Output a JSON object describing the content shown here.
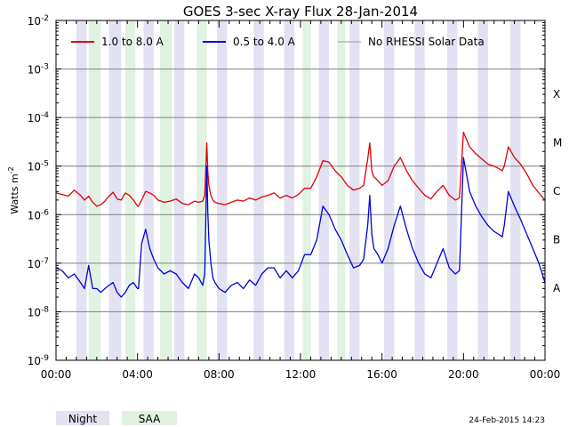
{
  "chart_data": {
    "type": "line",
    "title": "GOES 3-sec X-ray Flux   28-Jan-2014",
    "ylabel": "Watts m",
    "ylabel_sup": "-2",
    "y_scale": "log",
    "ylim": [
      1e-09,
      0.01
    ],
    "x_unit": "hours (UT)",
    "xlim": [
      0,
      24
    ],
    "x_ticks": [
      0,
      4,
      8,
      12,
      16,
      20,
      24
    ],
    "x_tick_labels": [
      "00:00",
      "04:00",
      "08:00",
      "12:00",
      "16:00",
      "20:00",
      "00:00"
    ],
    "y_ticks": [
      {
        "mantissa": "10",
        "exp": "-9",
        "value": 1e-09
      },
      {
        "mantissa": "10",
        "exp": "-8",
        "value": 1e-08
      },
      {
        "mantissa": "10",
        "exp": "-7",
        "value": 1e-07
      },
      {
        "mantissa": "10",
        "exp": "-6",
        "value": 1e-06
      },
      {
        "mantissa": "10",
        "exp": "-5",
        "value": 1e-05
      },
      {
        "mantissa": "10",
        "exp": "-4",
        "value": 0.0001
      },
      {
        "mantissa": "10",
        "exp": "-3",
        "value": 0.001
      },
      {
        "mantissa": "10",
        "exp": "-2",
        "value": 0.01
      }
    ],
    "flare_classes": [
      {
        "label": "A",
        "value": 1e-08
      },
      {
        "label": "B",
        "value": 1e-07
      },
      {
        "label": "C",
        "value": 1e-06
      },
      {
        "label": "M",
        "value": 1e-05
      },
      {
        "label": "X",
        "value": 0.0001
      }
    ],
    "grid": true,
    "legend_position": "top",
    "series": [
      {
        "name": "1.0 to 8.0 A",
        "color": "#e00000",
        "x": [
          0,
          0.3,
          0.6,
          0.9,
          1.2,
          1.4,
          1.6,
          1.8,
          2.0,
          2.2,
          2.4,
          2.6,
          2.8,
          3.0,
          3.2,
          3.4,
          3.6,
          3.8,
          4.0,
          4.05,
          4.2,
          4.4,
          4.6,
          4.8,
          5.0,
          5.3,
          5.6,
          5.9,
          6.2,
          6.5,
          6.8,
          7.0,
          7.2,
          7.3,
          7.4,
          7.45,
          7.5,
          7.6,
          7.7,
          7.8,
          8.0,
          8.3,
          8.6,
          8.9,
          9.2,
          9.5,
          9.8,
          10.1,
          10.4,
          10.7,
          11.0,
          11.3,
          11.6,
          11.9,
          12.2,
          12.5,
          12.8,
          13.1,
          13.4,
          13.7,
          14.0,
          14.3,
          14.6,
          14.9,
          15.1,
          15.3,
          15.4,
          15.5,
          15.6,
          15.8,
          16.0,
          16.3,
          16.6,
          16.9,
          17.2,
          17.5,
          17.8,
          18.1,
          18.4,
          18.7,
          19.0,
          19.3,
          19.6,
          19.8,
          20.0,
          20.3,
          20.6,
          20.9,
          21.2,
          21.5,
          21.7,
          21.9,
          22.0,
          22.2,
          22.5,
          22.8,
          23.1,
          23.4,
          23.7,
          24.0
        ],
        "y": [
          2.8e-06,
          2.6e-06,
          2.4e-06,
          3.2e-06,
          2.5e-06,
          2e-06,
          2.4e-06,
          1.8e-06,
          1.5e-06,
          1.6e-06,
          1.9e-06,
          2.4e-06,
          2.9e-06,
          2.1e-06,
          2e-06,
          2.8e-06,
          2.5e-06,
          2e-06,
          1.5e-06,
          1.5e-06,
          2e-06,
          3e-06,
          2.8e-06,
          2.5e-06,
          2e-06,
          1.8e-06,
          1.9e-06,
          2.1e-06,
          1.7e-06,
          1.6e-06,
          1.9e-06,
          1.8e-06,
          1.9e-06,
          2.5e-06,
          3e-05,
          8e-06,
          4e-06,
          2.5e-06,
          2e-06,
          1.8e-06,
          1.7e-06,
          1.6e-06,
          1.8e-06,
          2e-06,
          1.9e-06,
          2.2e-06,
          2e-06,
          2.3e-06,
          2.5e-06,
          2.8e-06,
          2.2e-06,
          2.5e-06,
          2.2e-06,
          2.6e-06,
          3.5e-06,
          3.5e-06,
          6e-06,
          1.3e-05,
          1.2e-05,
          8e-06,
          6e-06,
          4e-06,
          3.2e-06,
          3.5e-06,
          4e-06,
          1.4e-05,
          3e-05,
          8e-06,
          6e-06,
          5e-06,
          4e-06,
          5e-06,
          1e-05,
          1.5e-05,
          8e-06,
          5e-06,
          3.5e-06,
          2.5e-06,
          2.1e-06,
          3e-06,
          4e-06,
          2.5e-06,
          2e-06,
          2.2e-06,
          5e-05,
          2.5e-05,
          1.8e-05,
          1.4e-05,
          1.1e-05,
          1e-05,
          9e-06,
          8e-06,
          1e-05,
          2.5e-05,
          1.5e-05,
          1.1e-05,
          7e-06,
          4e-06,
          2.8e-06,
          2e-06
        ]
      },
      {
        "name": "0.5 to 4.0 A",
        "color": "#0000e0",
        "x": [
          0,
          0.3,
          0.6,
          0.9,
          1.2,
          1.4,
          1.6,
          1.8,
          2.0,
          2.2,
          2.4,
          2.6,
          2.8,
          3.0,
          3.2,
          3.4,
          3.6,
          3.8,
          4.0,
          4.05,
          4.2,
          4.4,
          4.6,
          4.8,
          5.0,
          5.3,
          5.6,
          5.9,
          6.2,
          6.5,
          6.8,
          7.0,
          7.2,
          7.3,
          7.4,
          7.45,
          7.5,
          7.6,
          7.7,
          7.8,
          8.0,
          8.3,
          8.6,
          8.9,
          9.2,
          9.5,
          9.8,
          10.1,
          10.4,
          10.7,
          11.0,
          11.3,
          11.6,
          11.9,
          12.2,
          12.5,
          12.8,
          13.1,
          13.4,
          13.7,
          14.0,
          14.3,
          14.6,
          14.9,
          15.1,
          15.3,
          15.4,
          15.5,
          15.6,
          15.8,
          16.0,
          16.3,
          16.6,
          16.9,
          17.2,
          17.5,
          17.8,
          18.1,
          18.4,
          18.7,
          19.0,
          19.3,
          19.6,
          19.8,
          20.0,
          20.3,
          20.6,
          20.9,
          21.2,
          21.5,
          21.7,
          21.9,
          22.0,
          22.2,
          22.5,
          22.8,
          23.1,
          23.4,
          23.7,
          24.0
        ],
        "y": [
          8e-08,
          7e-08,
          5e-08,
          6e-08,
          4e-08,
          3e-08,
          9e-08,
          3e-08,
          3e-08,
          2.5e-08,
          3e-08,
          3.5e-08,
          4e-08,
          2.5e-08,
          2e-08,
          2.5e-08,
          3.5e-08,
          4e-08,
          3e-08,
          3e-08,
          2.5e-07,
          5e-07,
          2e-07,
          1.2e-07,
          8e-08,
          6e-08,
          7e-08,
          6e-08,
          4e-08,
          3e-08,
          6e-08,
          5e-08,
          3.5e-08,
          6e-08,
          1e-05,
          1.2e-06,
          3e-07,
          1e-07,
          5e-08,
          4e-08,
          3e-08,
          2.5e-08,
          3.5e-08,
          4e-08,
          3e-08,
          4.5e-08,
          3.5e-08,
          6e-08,
          8e-08,
          8e-08,
          5e-08,
          7e-08,
          5e-08,
          7e-08,
          1.5e-07,
          1.5e-07,
          3e-07,
          1.5e-06,
          1e-06,
          5e-07,
          3e-07,
          1.5e-07,
          8e-08,
          9e-08,
          1.2e-07,
          6e-07,
          2.5e-06,
          4e-07,
          2e-07,
          1.5e-07,
          1e-07,
          2e-07,
          6e-07,
          1.5e-06,
          5e-07,
          2e-07,
          1e-07,
          6e-08,
          5e-08,
          1e-07,
          2e-07,
          8e-08,
          6e-08,
          7e-08,
          1.5e-05,
          3e-06,
          1.5e-06,
          9e-07,
          6e-07,
          4.5e-07,
          4e-07,
          3.5e-07,
          6e-07,
          3e-06,
          1.5e-06,
          8e-07,
          4e-07,
          2e-07,
          1e-07,
          4e-08
        ]
      },
      {
        "name": "No RHESSI Solar Data",
        "color": "#999999",
        "x": [],
        "y": []
      }
    ],
    "night_intervals": [
      [
        1.0,
        1.5
      ],
      [
        2.6,
        3.2
      ],
      [
        4.3,
        4.8
      ],
      [
        5.8,
        6.3
      ],
      [
        7.9,
        8.4
      ],
      [
        9.7,
        10.2
      ],
      [
        11.2,
        11.7
      ],
      [
        12.9,
        13.4
      ],
      [
        14.4,
        14.9
      ],
      [
        16.1,
        16.6
      ],
      [
        17.6,
        18.1
      ],
      [
        19.2,
        19.7
      ],
      [
        20.7,
        21.2
      ],
      [
        22.3,
        22.8
      ]
    ],
    "saa_intervals": [
      [
        1.6,
        2.2
      ],
      [
        3.4,
        3.9
      ],
      [
        5.1,
        5.7
      ],
      [
        6.9,
        7.4
      ],
      [
        12.1,
        12.5
      ],
      [
        13.8,
        14.2
      ]
    ],
    "night_color": "#e2e2f2",
    "saa_color": "#e2f2e2",
    "bottom_legend": {
      "night": "Night",
      "saa": "SAA"
    },
    "timestamp": "24-Feb-2015 14:23"
  }
}
